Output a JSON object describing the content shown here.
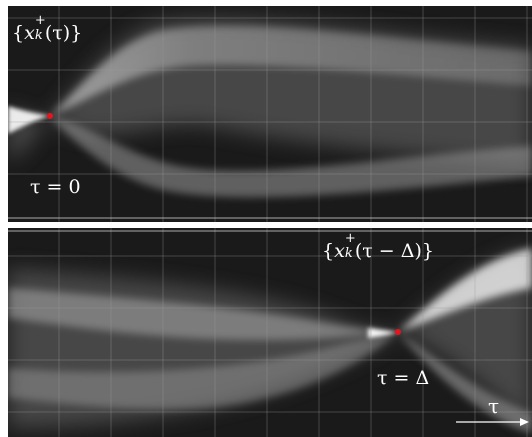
{
  "top_panel": {
    "set_label": {
      "open": "{",
      "var": "x",
      "sub": "k",
      "sup": "+",
      "arg": "(τ)",
      "close": "}"
    },
    "equation": "τ = 0",
    "marker_color": "#e8141c"
  },
  "bottom_panel": {
    "set_label": {
      "open": "{",
      "var": "x",
      "sub": "k",
      "sup": "+",
      "arg": "(τ − Δ)",
      "close": "}"
    },
    "equation": "τ = Δ",
    "marker_color": "#e8141c"
  },
  "time_axis": {
    "label": "τ"
  }
}
